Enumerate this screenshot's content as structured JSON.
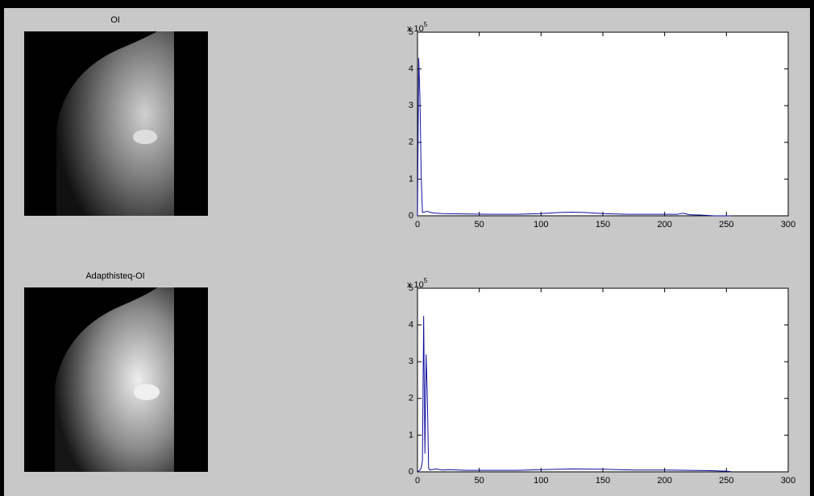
{
  "images": [
    {
      "title": "OI"
    },
    {
      "title": "Adapthisteq-OI"
    }
  ],
  "chart_data": [
    {
      "type": "line",
      "y_multiplier": "x 10",
      "y_multiplier_exponent": "5",
      "x": [
        0,
        1,
        2,
        3,
        4,
        5,
        8,
        12,
        20,
        40,
        60,
        80,
        100,
        115,
        125,
        135,
        150,
        170,
        190,
        210,
        215,
        220,
        230,
        240,
        255
      ],
      "series": [
        {
          "color": "#1010a0",
          "values": [
            0,
            4.3,
            3.2,
            1.1,
            0.1,
            0.1,
            0.12,
            0.08,
            0.06,
            0.05,
            0.04,
            0.04,
            0.06,
            0.09,
            0.1,
            0.09,
            0.06,
            0.04,
            0.04,
            0.04,
            0.07,
            0.03,
            0.02,
            0,
            0
          ]
        }
      ],
      "xlim": [
        0,
        300
      ],
      "xticks": [
        0,
        50,
        100,
        150,
        200,
        250,
        300
      ],
      "ylim": [
        0,
        5
      ],
      "yticks": [
        0,
        1,
        2,
        3,
        4,
        5
      ],
      "grid": false
    },
    {
      "type": "line",
      "y_multiplier": "x 10",
      "y_multiplier_exponent": "5",
      "x": [
        0,
        2,
        3,
        4,
        5,
        6,
        7,
        8,
        9,
        10,
        15,
        20,
        25,
        40,
        60,
        80,
        100,
        125,
        150,
        175,
        200,
        220,
        240,
        250,
        255
      ],
      "series": [
        {
          "color": "#1010a0",
          "values": [
            0,
            0.05,
            0.1,
            0.3,
            4.25,
            0.5,
            3.2,
            2.0,
            0.1,
            0.05,
            0.08,
            0.05,
            0.06,
            0.04,
            0.04,
            0.04,
            0.06,
            0.08,
            0.07,
            0.05,
            0.05,
            0.04,
            0.03,
            0.02,
            0
          ]
        }
      ],
      "xlim": [
        0,
        300
      ],
      "xticks": [
        0,
        50,
        100,
        150,
        200,
        250,
        300
      ],
      "ylim": [
        0,
        5
      ],
      "yticks": [
        0,
        1,
        2,
        3,
        4,
        5
      ],
      "grid": false
    }
  ]
}
